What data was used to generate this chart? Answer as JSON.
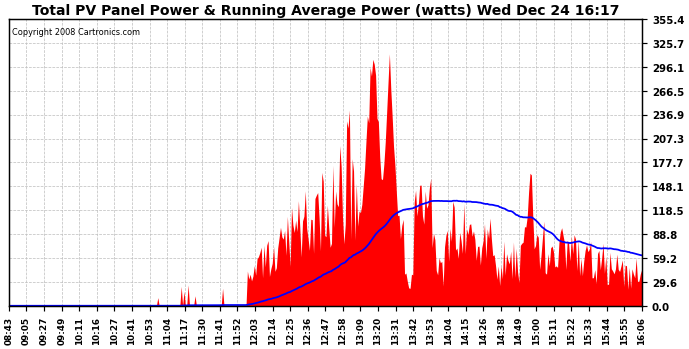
{
  "title": "Total PV Panel Power & Running Average Power (watts) Wed Dec 24 16:17",
  "copyright": "Copyright 2008 Cartronics.com",
  "background_color": "#ffffff",
  "plot_bg_color": "#ffffff",
  "grid_color": "#c0c0c0",
  "bar_color": "#ff0000",
  "line_color": "#0000ff",
  "ymin": 0.0,
  "ymax": 355.4,
  "yticks": [
    0.0,
    29.6,
    59.2,
    88.8,
    118.5,
    148.1,
    177.7,
    207.3,
    236.9,
    266.5,
    296.1,
    325.7,
    355.4
  ],
  "xtick_labels": [
    "08:43",
    "09:05",
    "09:27",
    "09:49",
    "10:11",
    "10:16",
    "10:27",
    "10:41",
    "10:53",
    "11:04",
    "11:17",
    "11:30",
    "11:41",
    "11:52",
    "12:03",
    "12:14",
    "12:25",
    "12:36",
    "12:47",
    "12:58",
    "13:09",
    "13:20",
    "13:31",
    "13:42",
    "13:53",
    "14:04",
    "14:15",
    "14:26",
    "14:38",
    "14:49",
    "15:00",
    "15:11",
    "15:22",
    "15:33",
    "15:44",
    "15:55",
    "16:06"
  ],
  "n_points": 460
}
